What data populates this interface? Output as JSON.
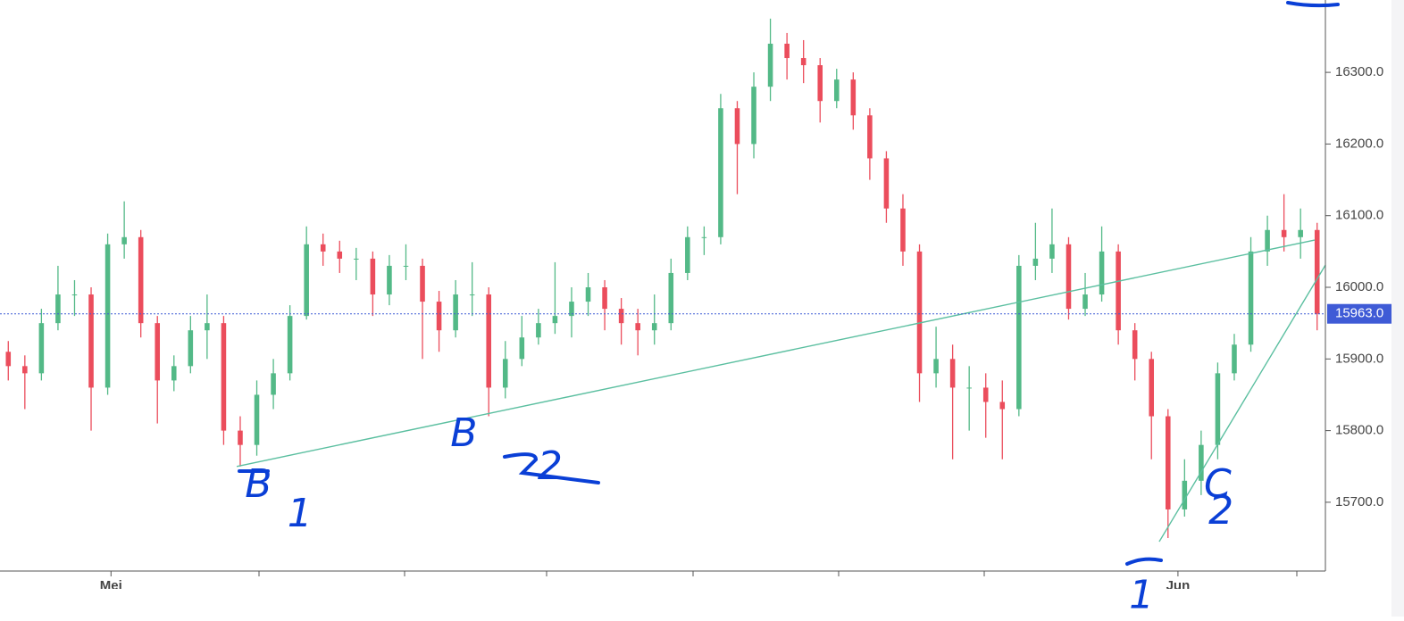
{
  "chart_data": {
    "type": "candlestick",
    "xlim": [
      0,
      80
    ],
    "ylim": [
      15604,
      16401
    ],
    "yticks": [
      {
        "value": 15700,
        "label": "15700.0"
      },
      {
        "value": 15800,
        "label": "15800.0"
      },
      {
        "value": 15900,
        "label": "15900.0"
      },
      {
        "value": 16000,
        "label": "16000.0"
      },
      {
        "value": 16100,
        "label": "16100.0"
      },
      {
        "value": 16200,
        "label": "16200.0"
      },
      {
        "value": 16300,
        "label": "16300.0"
      }
    ],
    "xticks": [
      {
        "value": 6.7,
        "label": "Mei"
      },
      {
        "value": 71.1,
        "label": "Jun"
      }
    ],
    "up_color": "#53b987",
    "down_color": "#eb4d5c",
    "open": [
      15910,
      15890,
      15880,
      15950,
      15990,
      15990,
      15860,
      16060,
      16070,
      15950,
      15870,
      15890,
      15940,
      15950,
      15800,
      15780,
      15850,
      15880,
      15960,
      16060,
      16050,
      16040,
      16040,
      15990,
      16030,
      16030,
      15980,
      15940,
      15990,
      15990,
      15860,
      15900,
      15930,
      15950,
      15960,
      15980,
      16000,
      15970,
      15950,
      15940,
      15950,
      16020,
      16070,
      16070,
      16250,
      16200,
      16280,
      16340,
      16320,
      16310,
      16260,
      16290,
      16240,
      16180,
      16110,
      16050,
      15880,
      15900,
      15860,
      15860,
      15840,
      15830,
      16030,
      16040,
      16060,
      15970,
      15990,
      16050,
      15940,
      15900,
      15820,
      15690,
      15730,
      15780,
      15880,
      15920,
      16050,
      16080,
      16070,
      16080
    ],
    "high": [
      15925,
      15905,
      15970,
      16030,
      16010,
      16000,
      16075,
      16120,
      16080,
      15960,
      15905,
      15960,
      15990,
      15960,
      15820,
      15870,
      15900,
      15975,
      16085,
      16075,
      16065,
      16055,
      16050,
      16045,
      16060,
      16040,
      15995,
      16010,
      16035,
      16000,
      15925,
      15960,
      15970,
      16035,
      16000,
      16020,
      16010,
      15985,
      15970,
      15990,
      16040,
      16085,
      16085,
      16270,
      16260,
      16300,
      16375,
      16355,
      16345,
      16320,
      16305,
      16300,
      16250,
      16190,
      16130,
      16060,
      15945,
      15920,
      15890,
      15880,
      15870,
      16045,
      16090,
      16110,
      16070,
      16020,
      16085,
      16060,
      15950,
      15910,
      15830,
      15760,
      15800,
      15895,
      15935,
      16070,
      16100,
      16130,
      16110,
      16090
    ],
    "low": [
      15870,
      15830,
      15870,
      15940,
      15960,
      15800,
      15850,
      16040,
      15930,
      15810,
      15855,
      15880,
      15900,
      15780,
      15750,
      15765,
      15830,
      15870,
      15955,
      16030,
      16020,
      16010,
      15960,
      15975,
      16010,
      15900,
      15910,
      15930,
      15960,
      15820,
      15845,
      15890,
      15920,
      15935,
      15930,
      15960,
      15940,
      15920,
      15905,
      15920,
      15940,
      16010,
      16045,
      16060,
      16130,
      16180,
      16260,
      16290,
      16285,
      16230,
      16250,
      16220,
      16150,
      16090,
      16030,
      15840,
      15860,
      15760,
      15800,
      15790,
      15760,
      15820,
      16010,
      16020,
      15955,
      15960,
      15980,
      15920,
      15870,
      15760,
      15650,
      15680,
      15710,
      15760,
      15870,
      15910,
      16030,
      16050,
      16040,
      15940
    ],
    "close": [
      15890,
      15880,
      15950,
      15990,
      15990,
      15860,
      16060,
      16070,
      15950,
      15870,
      15890,
      15940,
      15950,
      15800,
      15780,
      15850,
      15880,
      15960,
      16060,
      16050,
      16040,
      16040,
      15990,
      16030,
      16030,
      15980,
      15940,
      15990,
      15990,
      15860,
      15900,
      15930,
      15950,
      15960,
      15980,
      16000,
      15970,
      15950,
      15940,
      15950,
      16020,
      16070,
      16070,
      16250,
      16200,
      16280,
      16340,
      16320,
      16310,
      16260,
      16290,
      16240,
      16180,
      16110,
      16050,
      15880,
      15900,
      15860,
      15860,
      15840,
      15830,
      16030,
      16040,
      16060,
      15970,
      15990,
      16050,
      15940,
      15900,
      15820,
      15690,
      15730,
      15780,
      15880,
      15920,
      16050,
      16080,
      16070,
      16080,
      15963
    ],
    "last_price": {
      "value": 15963,
      "label": "15963.0"
    },
    "price_line_color": "#3f5bd6",
    "trend_lines": [
      {
        "color": "#5bbfa0",
        "x": [
          14.29,
          79.35
        ],
        "y": [
          15750,
          16066
        ]
      },
      {
        "color": "#5bbfa0",
        "x": [
          69.97,
          80
        ],
        "y": [
          15645,
          16031
        ]
      }
    ],
    "annotations": [
      {
        "text": "B",
        "x": 15.6,
        "y": 15722
      },
      {
        "text": "1",
        "x": 18.1,
        "y": 15681
      },
      {
        "text": "B",
        "x": 28.0,
        "y": 15793
      },
      {
        "text": "2",
        "x": 33.2,
        "y": 15747
      },
      {
        "text": "C",
        "x": 73.5,
        "y": 15722
      },
      {
        "text": "2",
        "x": 73.7,
        "y": 15685
      },
      {
        "text": "1",
        "x": 68.9,
        "y": 15567
      }
    ]
  }
}
